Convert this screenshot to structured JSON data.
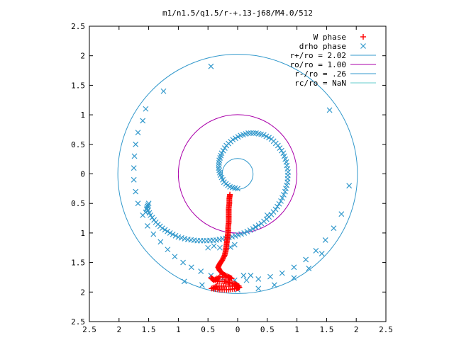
{
  "chart_data": {
    "type": "scatter",
    "title": "m1/n1.5/q1.5/r-+.13-j68/M4.0/512",
    "xlabel": "",
    "ylabel": "",
    "xlim": [
      -2.5,
      2.5
    ],
    "ylim": [
      -2.5,
      2.5
    ],
    "x_ticks": [
      -2.5,
      -2,
      -1.5,
      -1,
      -0.5,
      0,
      0.5,
      1,
      1.5,
      2,
      2.5
    ],
    "y_ticks": [
      -2.5,
      -2,
      -1.5,
      -1,
      -0.5,
      0,
      0.5,
      1,
      1.5,
      2,
      2.5
    ],
    "x_tick_labels": [
      "2.5",
      "2",
      "1.5",
      "1",
      "0.5",
      "0",
      "0.5",
      "1",
      "1.5",
      "2",
      "2.5"
    ],
    "y_tick_labels": [
      "2.5",
      "2",
      "1.5",
      "1",
      "0.5",
      "0",
      "0.5",
      "1",
      "1.5",
      "2",
      "2.5"
    ],
    "grid": false,
    "legend_position": "top-right",
    "series": [
      {
        "name": "W phase",
        "marker": "plus",
        "color": "#ff0000",
        "points": [
          [
            -0.13,
            -0.35
          ],
          [
            -0.14,
            -0.42
          ],
          [
            -0.14,
            -0.5
          ],
          [
            -0.15,
            -0.58
          ],
          [
            -0.15,
            -0.66
          ],
          [
            -0.15,
            -0.74
          ],
          [
            -0.15,
            -0.82
          ],
          [
            -0.16,
            -0.9
          ],
          [
            -0.16,
            -0.98
          ],
          [
            -0.17,
            -1.06
          ],
          [
            -0.18,
            -1.14
          ],
          [
            -0.19,
            -1.22
          ],
          [
            -0.2,
            -1.3
          ],
          [
            -0.22,
            -1.38
          ],
          [
            -0.26,
            -1.46
          ],
          [
            -0.3,
            -1.52
          ],
          [
            -0.33,
            -1.58
          ],
          [
            -0.3,
            -1.64
          ],
          [
            -0.24,
            -1.7
          ],
          [
            -0.16,
            -1.74
          ],
          [
            -0.1,
            -1.77
          ],
          [
            -0.3,
            -1.74
          ],
          [
            -0.4,
            -1.8
          ],
          [
            -0.45,
            -1.76
          ],
          [
            -0.34,
            -1.82
          ],
          [
            -0.22,
            -1.82
          ],
          [
            -0.14,
            -1.84
          ],
          [
            -0.05,
            -1.86
          ],
          [
            0.02,
            -1.9
          ],
          [
            -0.2,
            -1.9
          ],
          [
            -0.35,
            -1.9
          ],
          [
            -0.44,
            -1.94
          ],
          [
            -0.3,
            -1.96
          ],
          [
            -0.15,
            -1.96
          ],
          [
            -0.02,
            -1.94
          ],
          [
            0.03,
            -1.92
          ]
        ]
      },
      {
        "name": "drho phase",
        "marker": "cross",
        "color": "#3399cc",
        "points": [
          [
            0.0,
            -0.25
          ],
          [
            -0.13,
            -0.22
          ],
          [
            -0.23,
            -0.14
          ],
          [
            -0.29,
            -0.02
          ],
          [
            -0.32,
            0.1
          ],
          [
            -0.31,
            0.23
          ],
          [
            -0.27,
            0.35
          ],
          [
            -0.19,
            0.48
          ],
          [
            -0.08,
            0.58
          ],
          [
            0.05,
            0.65
          ],
          [
            0.18,
            0.69
          ],
          [
            0.31,
            0.69
          ],
          [
            0.44,
            0.66
          ],
          [
            0.57,
            0.59
          ],
          [
            0.68,
            0.48
          ],
          [
            0.77,
            0.35
          ],
          [
            0.82,
            0.2
          ],
          [
            0.85,
            0.03
          ],
          [
            0.84,
            -0.14
          ],
          [
            0.8,
            -0.3
          ],
          [
            0.73,
            -0.46
          ],
          [
            0.64,
            -0.6
          ],
          [
            0.53,
            -0.73
          ],
          [
            0.4,
            -0.84
          ],
          [
            0.26,
            -0.93
          ],
          [
            0.11,
            -1.0
          ],
          [
            -0.04,
            -1.05
          ],
          [
            -0.2,
            -1.09
          ],
          [
            -0.36,
            -1.12
          ],
          [
            -0.52,
            -1.13
          ],
          [
            -0.68,
            -1.13
          ],
          [
            -0.84,
            -1.11
          ],
          [
            -1.0,
            -1.07
          ],
          [
            -1.14,
            -1.0
          ],
          [
            -1.27,
            -0.92
          ],
          [
            -1.38,
            -0.82
          ],
          [
            -1.47,
            -0.7
          ],
          [
            -1.53,
            -0.58
          ],
          [
            -1.5,
            -0.5
          ],
          [
            -1.55,
            -0.65
          ],
          [
            -0.3,
            -1.25
          ],
          [
            -0.4,
            -1.22
          ],
          [
            -0.5,
            -1.25
          ],
          [
            -0.12,
            -1.24
          ],
          [
            -0.05,
            -1.2
          ],
          [
            1.55,
            1.08
          ],
          [
            -1.55,
            1.1
          ],
          [
            -1.6,
            0.9
          ],
          [
            -1.68,
            0.7
          ],
          [
            -1.72,
            0.5
          ],
          [
            -1.74,
            0.3
          ],
          [
            -1.75,
            0.1
          ],
          [
            -1.75,
            -0.1
          ],
          [
            -1.72,
            -0.3
          ],
          [
            -1.68,
            -0.5
          ],
          [
            -1.6,
            -0.7
          ],
          [
            -1.52,
            -0.88
          ],
          [
            -1.42,
            -1.02
          ],
          [
            -1.3,
            -1.15
          ],
          [
            -1.18,
            -1.28
          ],
          [
            -1.06,
            -1.4
          ],
          [
            -0.92,
            -1.5
          ],
          [
            -0.78,
            -1.58
          ],
          [
            -0.62,
            -1.65
          ],
          [
            -0.45,
            -1.72
          ],
          [
            -0.25,
            -1.77
          ],
          [
            -0.05,
            -1.8
          ],
          [
            0.15,
            -1.8
          ],
          [
            0.35,
            -1.78
          ],
          [
            0.55,
            -1.74
          ],
          [
            0.75,
            -1.68
          ],
          [
            0.95,
            -1.58
          ],
          [
            1.15,
            -1.45
          ],
          [
            1.32,
            -1.3
          ],
          [
            1.48,
            -1.12
          ],
          [
            1.62,
            -0.92
          ],
          [
            1.75,
            -0.68
          ],
          [
            1.88,
            -0.2
          ],
          [
            -1.25,
            1.4
          ],
          [
            -0.45,
            1.82
          ],
          [
            -0.9,
            -1.82
          ],
          [
            -0.6,
            -1.88
          ],
          [
            -0.35,
            -1.94
          ],
          [
            0.0,
            -1.96
          ],
          [
            0.35,
            -1.94
          ],
          [
            0.62,
            -1.88
          ],
          [
            0.95,
            -1.76
          ],
          [
            1.2,
            -1.6
          ],
          [
            1.42,
            -1.35
          ],
          [
            0.5,
            -0.7
          ],
          [
            0.3,
            -0.9
          ],
          [
            0.22,
            -1.72
          ],
          [
            0.1,
            -1.72
          ]
        ]
      },
      {
        "name": "r+/ro = 2.02",
        "type": "circle",
        "radius": 2.02,
        "color": "#3399cc"
      },
      {
        "name": "ro/ro = 1.00",
        "type": "circle",
        "radius": 1.0,
        "color": "#aa00aa"
      },
      {
        "name": "r-/ro = .26",
        "type": "circle",
        "radius": 0.26,
        "color": "#3399cc"
      },
      {
        "name": "rc/ro = NaN",
        "type": "circle",
        "radius": null,
        "color": "#66cccc"
      }
    ]
  }
}
